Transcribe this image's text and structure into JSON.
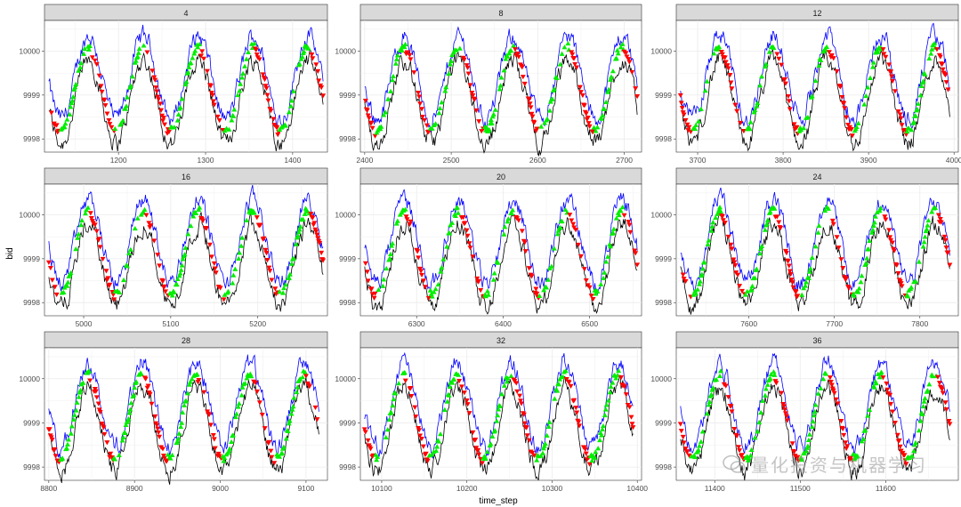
{
  "figure": {
    "xlabel": "time_step",
    "ylabel": "bid"
  },
  "watermark": {
    "text": "量化投资与机器学习"
  },
  "colors": {
    "ask_line": "#0000ff",
    "bid_line": "#000000",
    "buy_marker": "#00ee00",
    "sell_marker": "#ff0000",
    "strip_fill": "#d9d9d9",
    "grid": "#ebebeb"
  },
  "chart_data": [
    {
      "type": "line",
      "title": "4",
      "xlim": [
        1115,
        1440
      ],
      "ylim": [
        9997.7,
        10000.7
      ],
      "xticks": [
        1200,
        1300,
        1400
      ],
      "yticks": [
        9998,
        9999,
        10000
      ],
      "x_start": 1120,
      "x_end": 1435,
      "period": 63,
      "phase": 1150,
      "mid": 9999.1,
      "amp": 0.95,
      "spread": 0.55
    },
    {
      "type": "line",
      "title": "8",
      "xlim": [
        2395,
        2720
      ],
      "ylim": [
        9997.7,
        10000.7
      ],
      "xticks": [
        2400,
        2500,
        2600,
        2700
      ],
      "yticks": [
        9998,
        9999,
        10000
      ],
      "x_start": 2400,
      "x_end": 2715,
      "period": 63,
      "phase": 2430,
      "mid": 9999.1,
      "amp": 0.95,
      "spread": 0.55
    },
    {
      "type": "line",
      "title": "12",
      "xlim": [
        3675,
        4005
      ],
      "ylim": [
        9997.7,
        10000.7
      ],
      "xticks": [
        3700,
        3800,
        3900,
        4000
      ],
      "yticks": [
        9998,
        9999,
        10000
      ],
      "x_start": 3680,
      "x_end": 3995,
      "period": 63,
      "phase": 3710,
      "mid": 9999.1,
      "amp": 0.95,
      "spread": 0.55
    },
    {
      "type": "line",
      "title": "16",
      "xlim": [
        4955,
        5280
      ],
      "ylim": [
        9997.7,
        10000.7
      ],
      "xticks": [
        5000,
        5100,
        5200
      ],
      "yticks": [
        9998,
        9999,
        10000
      ],
      "x_start": 4960,
      "x_end": 5275,
      "period": 63,
      "phase": 4990,
      "mid": 9999.1,
      "amp": 0.95,
      "spread": 0.55
    },
    {
      "type": "line",
      "title": "20",
      "xlim": [
        6235,
        6560
      ],
      "ylim": [
        9997.7,
        10000.7
      ],
      "xticks": [
        6300,
        6400,
        6500
      ],
      "yticks": [
        9998,
        9999,
        10000
      ],
      "x_start": 6240,
      "x_end": 6555,
      "period": 63,
      "phase": 6270,
      "mid": 9999.1,
      "amp": 0.95,
      "spread": 0.55
    },
    {
      "type": "line",
      "title": "24",
      "xlim": [
        7515,
        7845
      ],
      "ylim": [
        9997.7,
        10000.7
      ],
      "xticks": [
        7600,
        7700,
        7800
      ],
      "yticks": [
        9998,
        9999,
        10000
      ],
      "x_start": 7520,
      "x_end": 7835,
      "period": 63,
      "phase": 7550,
      "mid": 9999.1,
      "amp": 0.95,
      "spread": 0.55
    },
    {
      "type": "line",
      "title": "28",
      "xlim": [
        8795,
        9125
      ],
      "ylim": [
        9997.7,
        10000.7
      ],
      "xticks": [
        8800,
        8900,
        9000,
        9100
      ],
      "yticks": [
        9998,
        9999,
        10000
      ],
      "x_start": 8800,
      "x_end": 9115,
      "period": 63,
      "phase": 8830,
      "mid": 9999.1,
      "amp": 0.95,
      "spread": 0.55
    },
    {
      "type": "line",
      "title": "32",
      "xlim": [
        10075,
        10405
      ],
      "ylim": [
        9997.7,
        10000.7
      ],
      "xticks": [
        10100,
        10200,
        10300,
        10400
      ],
      "yticks": [
        9998,
        9999,
        10000
      ],
      "x_start": 10080,
      "x_end": 10395,
      "period": 63,
      "phase": 10110,
      "mid": 9999.1,
      "amp": 0.95,
      "spread": 0.55
    },
    {
      "type": "line",
      "title": "36",
      "xlim": [
        11355,
        11685
      ],
      "ylim": [
        9997.7,
        10000.7
      ],
      "xticks": [
        11400,
        11500,
        11600
      ],
      "yticks": [
        9998,
        9999,
        10000
      ],
      "x_start": 11360,
      "x_end": 11675,
      "period": 63,
      "phase": 11390,
      "mid": 9999.1,
      "amp": 0.95,
      "spread": 0.55
    }
  ]
}
